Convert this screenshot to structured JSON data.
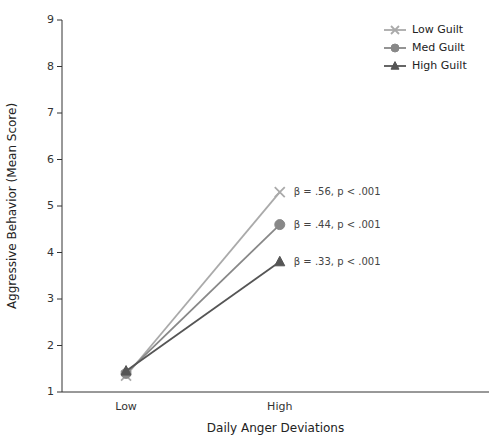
{
  "chart_data": {
    "type": "line",
    "xlabel": "Daily Anger Deviations",
    "ylabel": "Aggressive Behavior (Mean Score)",
    "categories": [
      "Low",
      "High"
    ],
    "series": [
      {
        "name": "Low Guilt",
        "color": "#aaaaaa",
        "marker": "x",
        "values": [
          1.35,
          5.3
        ],
        "annotation": "β = .56, p < .001"
      },
      {
        "name": "Med Guilt",
        "color": "#888888",
        "marker": "circle",
        "values": [
          1.4,
          4.6
        ],
        "annotation": "β = .44, p < .001"
      },
      {
        "name": "High Guilt",
        "color": "#555555",
        "marker": "triangle",
        "values": [
          1.45,
          3.8
        ],
        "annotation": "β = .33, p < .001"
      }
    ],
    "ylim": [
      1,
      9
    ],
    "yticks": [
      1,
      2,
      3,
      4,
      5,
      6,
      7,
      8,
      9
    ],
    "grid": false,
    "legend": "upper right"
  }
}
